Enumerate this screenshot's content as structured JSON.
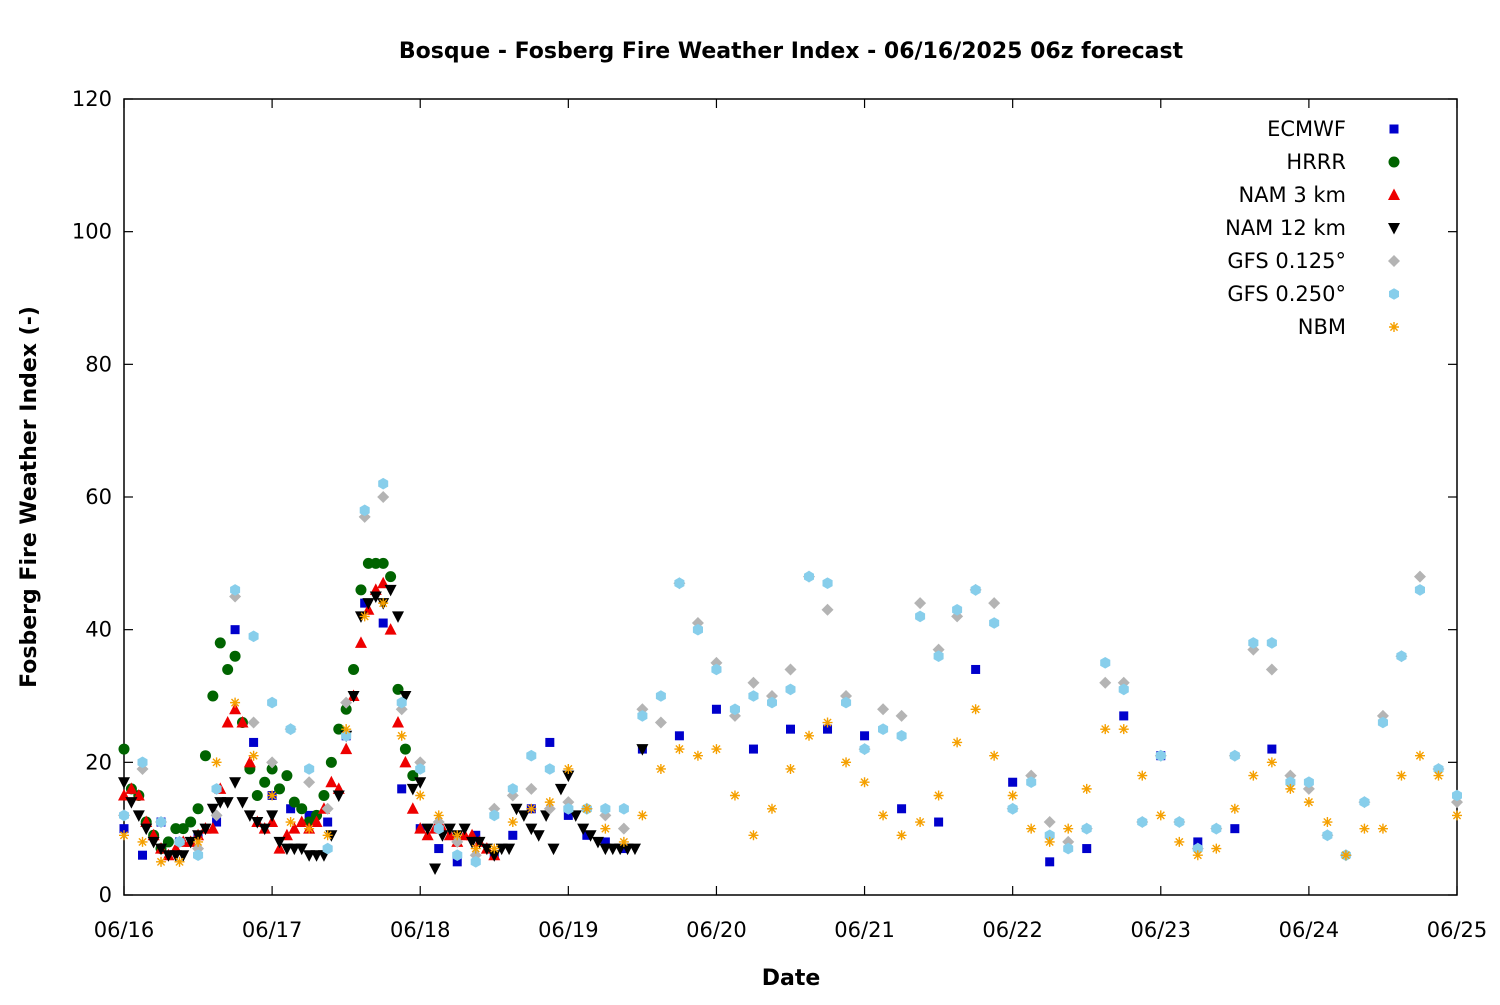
{
  "chart_data": {
    "type": "scatter",
    "title": "Bosque - Fosberg Fire Weather Index - 06/16/2025 06z forecast",
    "xlabel": "Date",
    "ylabel": "Fosberg Fire Weather Index (-)",
    "xlim": [
      0,
      9
    ],
    "ylim": [
      0,
      120
    ],
    "x_unit": "days since 06/16 00z",
    "x_ticks": [
      {
        "value": 0,
        "label": "06/16"
      },
      {
        "value": 1,
        "label": "06/17"
      },
      {
        "value": 2,
        "label": "06/18"
      },
      {
        "value": 3,
        "label": "06/19"
      },
      {
        "value": 4,
        "label": "06/20"
      },
      {
        "value": 5,
        "label": "06/21"
      },
      {
        "value": 6,
        "label": "06/22"
      },
      {
        "value": 7,
        "label": "06/23"
      },
      {
        "value": 8,
        "label": "06/24"
      },
      {
        "value": 9,
        "label": "06/25"
      }
    ],
    "y_ticks": [
      0,
      20,
      40,
      60,
      80,
      100,
      120
    ],
    "grid": false,
    "legend_position": "top-right",
    "series": [
      {
        "name": "ECMWF",
        "marker": "square",
        "color": "#0000cc",
        "x": [
          0,
          0.125,
          0.25,
          0.375,
          0.5,
          0.625,
          0.75,
          0.875,
          1,
          1.125,
          1.25,
          1.375,
          1.5,
          1.625,
          1.75,
          1.875,
          2,
          2.125,
          2.25,
          2.375,
          2.5,
          2.625,
          2.75,
          2.875,
          3,
          3.125,
          3.25,
          3.375,
          3.5,
          3.75,
          4,
          4.25,
          4.5,
          4.75,
          5,
          5.25,
          5.5,
          5.75,
          6,
          6.25,
          6.5,
          6.75,
          7,
          7.25,
          7.5,
          7.75
        ],
        "y": [
          10,
          6,
          11,
          8,
          9,
          11,
          40,
          23,
          15,
          13,
          12,
          11,
          24,
          44,
          41,
          16,
          10,
          7,
          5,
          9,
          6,
          9,
          13,
          23,
          12,
          9,
          8,
          7,
          22,
          24,
          28,
          22,
          25,
          25,
          24,
          13,
          11,
          34,
          17,
          5,
          7,
          27,
          21,
          8,
          10,
          22
        ]
      },
      {
        "name": "HRRR",
        "marker": "circle",
        "color": "#006400",
        "x": [
          0,
          0.05,
          0.1,
          0.15,
          0.2,
          0.25,
          0.3,
          0.35,
          0.4,
          0.45,
          0.5,
          0.55,
          0.6,
          0.65,
          0.7,
          0.75,
          0.8,
          0.85,
          0.9,
          0.95,
          1,
          1.05,
          1.1,
          1.15,
          1.2,
          1.25,
          1.3,
          1.35,
          1.4,
          1.45,
          1.5,
          1.55,
          1.6,
          1.65,
          1.7,
          1.75,
          1.8,
          1.85,
          1.9,
          1.95
        ],
        "y": [
          22,
          16,
          15,
          11,
          9,
          7,
          8,
          10,
          10,
          11,
          13,
          21,
          30,
          38,
          34,
          36,
          26,
          19,
          15,
          17,
          19,
          16,
          18,
          14,
          13,
          11,
          12,
          15,
          20,
          25,
          28,
          34,
          46,
          50,
          50,
          50,
          48,
          31,
          22,
          18
        ]
      },
      {
        "name": "NAM 3 km",
        "marker": "triangle-up",
        "color": "#ee0000",
        "x": [
          0,
          0.05,
          0.1,
          0.15,
          0.2,
          0.25,
          0.3,
          0.35,
          0.4,
          0.45,
          0.5,
          0.55,
          0.6,
          0.65,
          0.7,
          0.75,
          0.8,
          0.85,
          0.9,
          0.95,
          1,
          1.05,
          1.1,
          1.15,
          1.2,
          1.25,
          1.3,
          1.35,
          1.4,
          1.45,
          1.5,
          1.55,
          1.6,
          1.65,
          1.7,
          1.75,
          1.8,
          1.85,
          1.9,
          1.95,
          2,
          2.05,
          2.1,
          2.15,
          2.2,
          2.25,
          2.3,
          2.35,
          2.4,
          2.45,
          2.5
        ],
        "y": [
          15,
          16,
          15,
          11,
          9,
          7,
          6,
          7,
          8,
          8,
          9,
          10,
          10,
          16,
          26,
          28,
          26,
          20,
          11,
          10,
          11,
          7,
          9,
          10,
          11,
          10,
          11,
          13,
          17,
          16,
          22,
          30,
          38,
          43,
          46,
          47,
          40,
          26,
          20,
          13,
          10,
          9,
          10,
          10,
          9,
          8,
          9,
          9,
          8,
          7,
          6
        ]
      },
      {
        "name": "NAM 12 km",
        "marker": "triangle-down",
        "color": "#000000",
        "x": [
          0,
          0.05,
          0.1,
          0.15,
          0.2,
          0.25,
          0.3,
          0.35,
          0.4,
          0.45,
          0.5,
          0.55,
          0.6,
          0.65,
          0.7,
          0.75,
          0.8,
          0.85,
          0.9,
          0.95,
          1,
          1.05,
          1.1,
          1.15,
          1.2,
          1.25,
          1.3,
          1.35,
          1.4,
          1.45,
          1.5,
          1.55,
          1.6,
          1.65,
          1.7,
          1.75,
          1.8,
          1.85,
          1.9,
          1.95,
          2,
          2.05,
          2.1,
          2.15,
          2.2,
          2.25,
          2.3,
          2.35,
          2.4,
          2.45,
          2.5,
          2.55,
          2.6,
          2.65,
          2.7,
          2.75,
          2.8,
          2.85,
          2.9,
          2.95,
          3,
          3.05,
          3.1,
          3.15,
          3.2,
          3.25,
          3.3,
          3.35,
          3.4,
          3.45,
          3.5
        ],
        "y": [
          17,
          14,
          12,
          10,
          8,
          7,
          6,
          6,
          6,
          8,
          9,
          10,
          13,
          14,
          14,
          17,
          14,
          12,
          11,
          10,
          12,
          8,
          7,
          7,
          7,
          6,
          6,
          6,
          9,
          15,
          24,
          30,
          42,
          44,
          45,
          44,
          46,
          42,
          30,
          16,
          17,
          10,
          4,
          9,
          10,
          9,
          10,
          8,
          8,
          7,
          6,
          7,
          7,
          13,
          12,
          10,
          9,
          12,
          7,
          16,
          18,
          12,
          10,
          9,
          8,
          7,
          7,
          7,
          7,
          7,
          22
        ]
      },
      {
        "name": "GFS 0.125°",
        "marker": "diamond",
        "color": "#b4b4b4",
        "x": [
          0,
          0.125,
          0.25,
          0.375,
          0.5,
          0.625,
          0.75,
          0.875,
          1,
          1.125,
          1.25,
          1.375,
          1.5,
          1.625,
          1.75,
          1.875,
          2,
          2.125,
          2.25,
          2.375,
          2.5,
          2.625,
          2.75,
          2.875,
          3,
          3.125,
          3.25,
          3.375,
          3.5,
          3.625,
          3.75,
          3.875,
          4,
          4.125,
          4.25,
          4.375,
          4.5,
          4.625,
          4.75,
          4.875,
          5,
          5.125,
          5.25,
          5.375,
          5.5,
          5.625,
          5.75,
          5.875,
          6,
          6.125,
          6.25,
          6.375,
          6.5,
          6.625,
          6.75,
          6.875,
          7,
          7.125,
          7.25,
          7.375,
          7.5,
          7.625,
          7.75,
          7.875,
          8,
          8.125,
          8.25,
          8.375,
          8.5,
          8.625,
          8.75,
          8.875,
          9
        ],
        "y": [
          12,
          19,
          11,
          8,
          7,
          12,
          45,
          26,
          20,
          25,
          17,
          13,
          29,
          57,
          60,
          28,
          20,
          11,
          8,
          6,
          13,
          15,
          16,
          13,
          14,
          13,
          12,
          10,
          28,
          26,
          47,
          41,
          35,
          27,
          32,
          30,
          34,
          48,
          43,
          30,
          22,
          28,
          27,
          44,
          37,
          42,
          46,
          44,
          13,
          18,
          11,
          8,
          10,
          32,
          32,
          11,
          21,
          11,
          7,
          10,
          21,
          37,
          34,
          18,
          16,
          9,
          6,
          14,
          27,
          36,
          48,
          19,
          14
        ]
      },
      {
        "name": "GFS 0.250°",
        "marker": "hexagon",
        "color": "#87ceeb",
        "x": [
          0,
          0.125,
          0.25,
          0.375,
          0.5,
          0.625,
          0.75,
          0.875,
          1,
          1.125,
          1.25,
          1.375,
          1.5,
          1.625,
          1.75,
          1.875,
          2,
          2.125,
          2.25,
          2.375,
          2.5,
          2.625,
          2.75,
          2.875,
          3,
          3.125,
          3.25,
          3.375,
          3.5,
          3.625,
          3.75,
          3.875,
          4,
          4.125,
          4.25,
          4.375,
          4.5,
          4.625,
          4.75,
          4.875,
          5,
          5.125,
          5.25,
          5.375,
          5.5,
          5.625,
          5.75,
          5.875,
          6,
          6.125,
          6.25,
          6.375,
          6.5,
          6.625,
          6.75,
          6.875,
          7,
          7.125,
          7.25,
          7.375,
          7.5,
          7.625,
          7.75,
          7.875,
          8,
          8.125,
          8.25,
          8.375,
          8.5,
          8.625,
          8.75,
          8.875,
          9
        ],
        "y": [
          12,
          20,
          11,
          8,
          6,
          16,
          46,
          39,
          29,
          25,
          19,
          7,
          24,
          58,
          62,
          29,
          19,
          10,
          6,
          5,
          12,
          16,
          21,
          19,
          13,
          13,
          13,
          13,
          27,
          30,
          47,
          40,
          34,
          28,
          30,
          29,
          31,
          48,
          47,
          29,
          22,
          25,
          24,
          42,
          36,
          43,
          46,
          41,
          13,
          17,
          9,
          7,
          10,
          35,
          31,
          11,
          21,
          11,
          7,
          10,
          21,
          38,
          38,
          17,
          17,
          9,
          6,
          14,
          26,
          36,
          46,
          19,
          15
        ]
      },
      {
        "name": "NBM",
        "marker": "star",
        "color": "#f5a000",
        "x": [
          0,
          0.125,
          0.25,
          0.375,
          0.5,
          0.625,
          0.75,
          0.875,
          1,
          1.125,
          1.25,
          1.375,
          1.5,
          1.625,
          1.75,
          1.875,
          2,
          2.125,
          2.25,
          2.375,
          2.5,
          2.625,
          2.75,
          2.875,
          3,
          3.125,
          3.25,
          3.375,
          3.5,
          3.625,
          3.75,
          3.875,
          4,
          4.125,
          4.25,
          4.375,
          4.5,
          4.625,
          4.75,
          4.875,
          5,
          5.125,
          5.25,
          5.375,
          5.5,
          5.625,
          5.75,
          5.875,
          6,
          6.125,
          6.25,
          6.375,
          6.5,
          6.625,
          6.75,
          6.875,
          7,
          7.125,
          7.25,
          7.375,
          7.5,
          7.625,
          7.75,
          7.875,
          8,
          8.125,
          8.25,
          8.375,
          8.5,
          8.625,
          8.75,
          8.875,
          9
        ],
        "y": [
          9,
          8,
          5,
          5,
          8,
          20,
          29,
          21,
          15,
          11,
          10,
          9,
          25,
          42,
          44,
          24,
          15,
          12,
          9,
          7,
          7,
          11,
          13,
          14,
          19,
          13,
          10,
          8,
          12,
          19,
          22,
          21,
          22,
          15,
          9,
          13,
          19,
          24,
          26,
          20,
          17,
          12,
          9,
          11,
          15,
          23,
          28,
          21,
          15,
          10,
          8,
          10,
          16,
          25,
          25,
          18,
          12,
          8,
          6,
          7,
          13,
          18,
          20,
          16,
          14,
          11,
          6,
          10,
          10,
          18,
          21,
          18,
          12
        ]
      }
    ]
  }
}
